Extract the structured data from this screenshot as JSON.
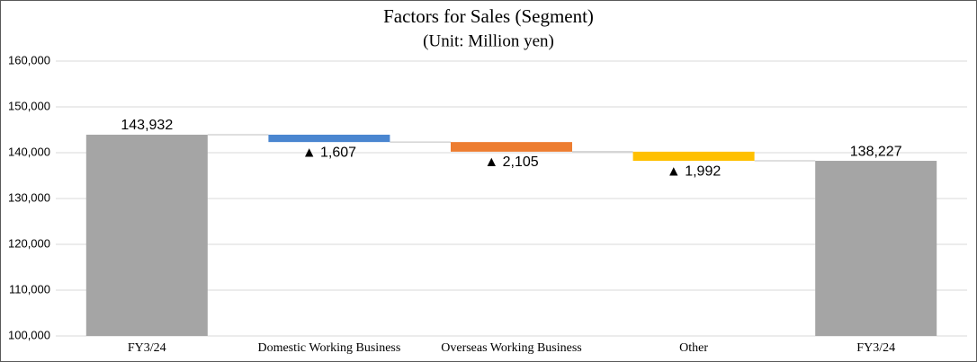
{
  "chart_data": {
    "type": "waterfall",
    "title": "Factors for Sales (Segment)",
    "subtitle": "(Unit: Million yen)",
    "categories": [
      "FY3/24",
      "Domestic Working Business",
      "Overseas Working Business",
      "Other",
      "FY3/24"
    ],
    "values": [
      143932,
      -1607,
      -2105,
      -1992,
      138227
    ],
    "value_labels": [
      "143,932",
      "▲ 1,607",
      "▲ 2,105",
      "▲ 1,992",
      "138,227"
    ],
    "colors": [
      "#a5a5a5",
      "#4a86d0",
      "#ed7d31",
      "#ffc000",
      "#a5a5a5"
    ],
    "ylim": [
      100000,
      160000
    ],
    "yticks": [
      {
        "value": 100000,
        "label": "100,000"
      },
      {
        "value": 110000,
        "label": "110,000"
      },
      {
        "value": 120000,
        "label": "120,000"
      },
      {
        "value": 130000,
        "label": "130,000"
      },
      {
        "value": 140000,
        "label": "140,000"
      },
      {
        "value": 150000,
        "label": "150,000"
      },
      {
        "value": 160000,
        "label": "160,000"
      }
    ],
    "grid": true
  }
}
